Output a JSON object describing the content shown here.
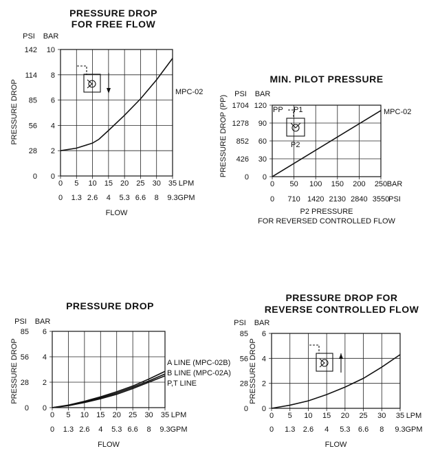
{
  "chart_data": [
    {
      "type": "line",
      "title": [
        "PRESSURE DROP",
        "FOR FREE FLOW"
      ],
      "ylabel": "PRESSURE DROP",
      "xlabel": "FLOW",
      "y_unit_outer": "PSI",
      "y_unit_inner": "BAR",
      "x_unit_primary": "LPM",
      "x_unit_secondary": "GPM",
      "x_ticks": [
        "0",
        "5",
        "10",
        "15",
        "20",
        "25",
        "30",
        "35"
      ],
      "x_ticks_secondary": [
        "0",
        "1.3",
        "2.6",
        "4",
        "5.3",
        "6.6",
        "8",
        "9.3"
      ],
      "xlim": [
        0,
        35
      ],
      "y_ticks_inner": [
        "0",
        "2",
        "4",
        "6",
        "8",
        "10"
      ],
      "y_ticks_outer": [
        "0",
        "28",
        "56",
        "85",
        "114",
        "142"
      ],
      "ylim": [
        0,
        10
      ],
      "grid": true,
      "series": [
        {
          "name": "MPC-02",
          "x": [
            0,
            5,
            10,
            12,
            15,
            20,
            25,
            30,
            35
          ],
          "y": [
            2.0,
            2.2,
            2.6,
            2.9,
            3.6,
            4.8,
            6.1,
            7.6,
            9.3
          ]
        }
      ]
    },
    {
      "type": "line",
      "title": [
        "MIN. PILOT PRESSURE"
      ],
      "ylabel": "PRESSURE DROP (PP)",
      "xlabel": [
        "P2 PRESSURE",
        "FOR REVERSED CONTROLLED FLOW"
      ],
      "y_unit_outer": "PSI",
      "y_unit_inner": "BAR",
      "x_unit_primary": "BAR",
      "x_unit_secondary": "PSI",
      "x_ticks": [
        "0",
        "50",
        "100",
        "150",
        "200",
        "250"
      ],
      "x_ticks_secondary": [
        "0",
        "710",
        "1420",
        "2130",
        "2840",
        "3550"
      ],
      "xlim": [
        0,
        250
      ],
      "y_ticks_inner": [
        "0",
        "30",
        "60",
        "90",
        "120"
      ],
      "y_ticks_outer": [
        "0",
        "426",
        "852",
        "1278",
        "1704"
      ],
      "ylim": [
        0,
        120
      ],
      "grid": true,
      "symbol_labels": {
        "pp": "PP",
        "p1": "P1",
        "p2": "P2"
      },
      "series": [
        {
          "name": "MPC-02",
          "x": [
            0,
            250
          ],
          "y": [
            0,
            111
          ]
        }
      ]
    },
    {
      "type": "line",
      "title": [
        "PRESSURE DROP"
      ],
      "ylabel": "PRESSURE DROP",
      "xlabel": "FLOW",
      "y_unit_outer": "PSI",
      "y_unit_inner": "BAR",
      "x_unit_primary": "LPM",
      "x_unit_secondary": "GPM",
      "x_ticks": [
        "0",
        "5",
        "10",
        "15",
        "20",
        "25",
        "30",
        "35"
      ],
      "x_ticks_secondary": [
        "0",
        "1.3",
        "2.6",
        "4",
        "5.3",
        "6.6",
        "8",
        "9.3"
      ],
      "xlim": [
        0,
        35
      ],
      "y_ticks_inner": [
        "0",
        "2",
        "4",
        "6"
      ],
      "y_ticks_outer": [
        "0",
        "28",
        "56",
        "85"
      ],
      "ylim": [
        0,
        6
      ],
      "grid": true,
      "series": [
        {
          "name": "A LINE (MPC-02B)",
          "x": [
            0,
            5,
            10,
            15,
            20,
            25,
            30,
            35
          ],
          "y": [
            0,
            0.2,
            0.5,
            0.85,
            1.25,
            1.7,
            2.25,
            2.85
          ]
        },
        {
          "name": "B LINE (MPC-02A)",
          "x": [
            0,
            5,
            10,
            15,
            20,
            25,
            30,
            35
          ],
          "y": [
            0,
            0.18,
            0.45,
            0.78,
            1.15,
            1.6,
            2.1,
            2.65
          ]
        },
        {
          "name": "P,T LINE",
          "x": [
            0,
            5,
            10,
            15,
            20,
            25,
            30,
            35
          ],
          "y": [
            0,
            0.15,
            0.4,
            0.7,
            1.05,
            1.5,
            2.0,
            2.5
          ]
        }
      ]
    },
    {
      "type": "line",
      "title": [
        "PRESSURE DROP FOR",
        "REVERSE  CONTROLLED FLOW"
      ],
      "ylabel": "PRESSURE DROP",
      "xlabel": "FLOW",
      "y_unit_outer": "PSI",
      "y_unit_inner": "BAR",
      "x_unit_primary": "LPM",
      "x_unit_secondary": "GPM",
      "x_ticks": [
        "0",
        "5",
        "10",
        "15",
        "20",
        "25",
        "30",
        "35"
      ],
      "x_ticks_secondary": [
        "0",
        "1.3",
        "2.6",
        "4",
        "5.3",
        "6.6",
        "8",
        "9.3"
      ],
      "xlim": [
        0,
        35
      ],
      "y_ticks_inner": [
        "0",
        "2",
        "4",
        "6"
      ],
      "y_ticks_outer": [
        "0",
        "28",
        "56",
        "85"
      ],
      "ylim": [
        0,
        6
      ],
      "grid": true,
      "series": [
        {
          "name": "",
          "x": [
            0,
            5,
            10,
            15,
            20,
            25,
            30,
            35
          ],
          "y": [
            0,
            0.25,
            0.6,
            1.1,
            1.7,
            2.4,
            3.3,
            4.3
          ]
        }
      ]
    }
  ]
}
